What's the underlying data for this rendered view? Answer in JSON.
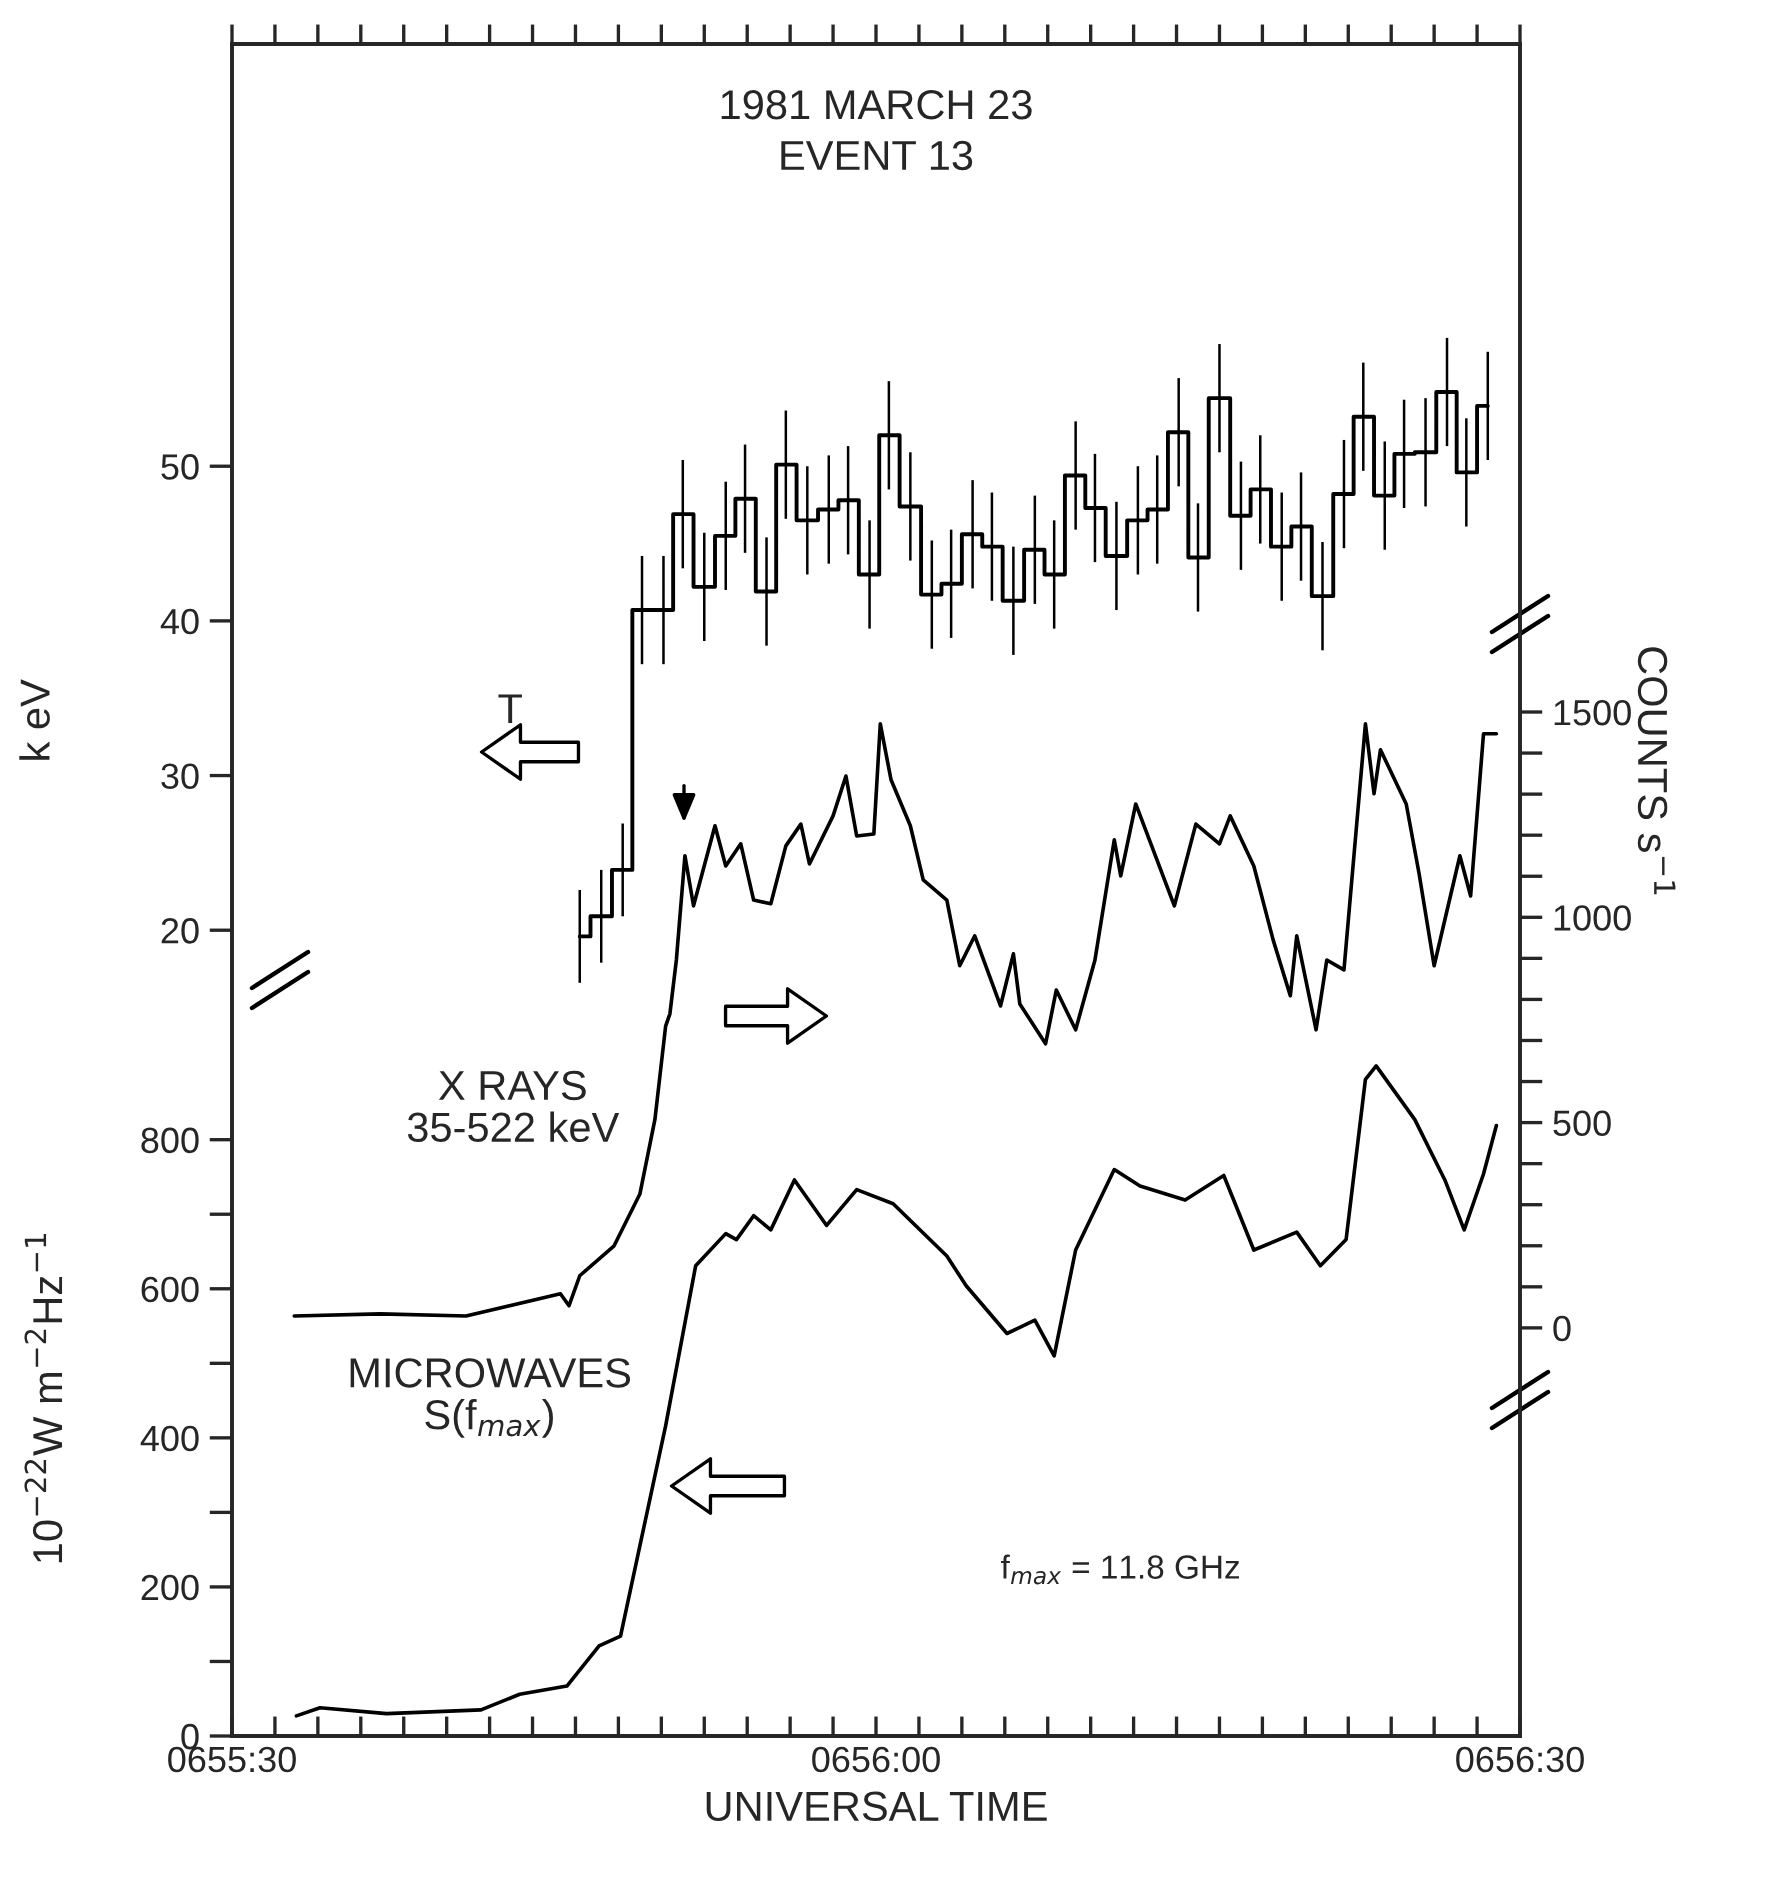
{
  "chart_data": {
    "type": "line",
    "title": "1981 MARCH 23",
    "subtitle": "EVENT 13",
    "xlabel": "UNIVERSAL TIME",
    "ylabel": "10$^{−22}$W m$^{−2}$Hz$^{−1}$",
    "y2label": "COUNTS s$^{−1}$",
    "y3label": "k eV",
    "annotations": [
      "f$_{max}$ = 11.8 GHz"
    ],
    "xlim": [
      "1981-03-23T06:55:30",
      "1981-03-23T06:56:30"
    ],
    "xticks": [
      {
        "value": "1981-03-23T06:55:30",
        "label": "0655:30"
      },
      {
        "value": "1981-03-23T06:55:32",
        "label": null
      },
      {
        "value": "1981-03-23T06:55:34",
        "label": null
      },
      {
        "value": "1981-03-23T06:55:36",
        "label": null
      },
      {
        "value": "1981-03-23T06:55:38",
        "label": null
      },
      {
        "value": "1981-03-23T06:55:40",
        "label": null
      },
      {
        "value": "1981-03-23T06:55:42",
        "label": null
      },
      {
        "value": "1981-03-23T06:55:44",
        "label": null
      },
      {
        "value": "1981-03-23T06:55:46",
        "label": null
      },
      {
        "value": "1981-03-23T06:55:48",
        "label": null
      },
      {
        "value": "1981-03-23T06:55:50",
        "label": null
      },
      {
        "value": "1981-03-23T06:55:52",
        "label": null
      },
      {
        "value": "1981-03-23T06:55:54",
        "label": null
      },
      {
        "value": "1981-03-23T06:55:56",
        "label": null
      },
      {
        "value": "1981-03-23T06:55:58",
        "label": null
      },
      {
        "value": "1981-03-23T06:56:00",
        "label": "0656:00"
      },
      {
        "value": "1981-03-23T06:56:02",
        "label": null
      },
      {
        "value": "1981-03-23T06:56:04",
        "label": null
      },
      {
        "value": "1981-03-23T06:56:06",
        "label": null
      },
      {
        "value": "1981-03-23T06:56:08",
        "label": null
      },
      {
        "value": "1981-03-23T06:56:10",
        "label": null
      },
      {
        "value": "1981-03-23T06:56:12",
        "label": null
      },
      {
        "value": "1981-03-23T06:56:14",
        "label": null
      },
      {
        "value": "1981-03-23T06:56:16",
        "label": null
      },
      {
        "value": "1981-03-23T06:56:18",
        "label": null
      },
      {
        "value": "1981-03-23T06:56:20",
        "label": null
      },
      {
        "value": "1981-03-23T06:56:22",
        "label": null
      },
      {
        "value": "1981-03-23T06:56:24",
        "label": null
      },
      {
        "value": "1981-03-23T06:56:26",
        "label": null
      },
      {
        "value": "1981-03-23T06:56:28",
        "label": null
      },
      {
        "value": "1981-03-23T06:56:30",
        "label": "0656:30"
      }
    ],
    "ylim": [
      0,
      2270
    ],
    "yticks": [
      0,
      {
        "value": 100,
        "label": null
      },
      200,
      {
        "value": 300,
        "label": null
      },
      400,
      {
        "value": 500,
        "label": null
      },
      600,
      {
        "value": 700,
        "label": null
      },
      800
    ],
    "y2lim": [
      -994,
      3127
    ],
    "y2ticks": [
      0,
      {
        "value": 100,
        "label": null
      },
      {
        "value": 200,
        "label": null
      },
      {
        "value": 300,
        "label": null
      },
      {
        "value": 400,
        "label": null
      },
      500,
      {
        "value": 600,
        "label": null
      },
      {
        "value": 700,
        "label": null
      },
      {
        "value": 800,
        "label": null
      },
      {
        "value": 900,
        "label": null
      },
      1000,
      {
        "value": 1100,
        "label": null
      },
      {
        "value": 1200,
        "label": null
      },
      {
        "value": 1300,
        "label": null
      },
      {
        "value": 1400,
        "label": null
      },
      1500
    ],
    "y3lim": [
      -32.1,
      77.3
    ],
    "y3ticks": [
      20,
      30,
      40,
      50
    ],
    "series": [
      {
        "name": "T",
        "type": "step",
        "axis": "y3",
        "color": "#000000",
        "x": [
          "1981-03-23T06:55:46.2",
          "1981-03-23T06:55:47.2",
          "1981-03-23T06:55:48.2",
          "1981-03-23T06:55:49.1",
          "1981-03-23T06:55:50.1",
          "1981-03-23T06:55:51.0",
          "1981-03-23T06:55:52.0",
          "1981-03-23T06:55:53.0",
          "1981-03-23T06:55:53.9",
          "1981-03-23T06:55:54.9",
          "1981-03-23T06:55:55.8",
          "1981-03-23T06:55:56.8",
          "1981-03-23T06:55:57.8",
          "1981-03-23T06:55:58.7",
          "1981-03-23T06:55:59.7",
          "1981-03-23T06:56:00.6",
          "1981-03-23T06:56:01.6",
          "1981-03-23T06:56:02.6",
          "1981-03-23T06:56:03.5",
          "1981-03-23T06:56:04.5",
          "1981-03-23T06:56:05.4",
          "1981-03-23T06:56:06.4",
          "1981-03-23T06:56:07.4",
          "1981-03-23T06:56:08.3",
          "1981-03-23T06:56:09.3",
          "1981-03-23T06:56:10.2",
          "1981-03-23T06:56:11.2",
          "1981-03-23T06:56:12.2",
          "1981-03-23T06:56:13.1",
          "1981-03-23T06:56:14.1",
          "1981-03-23T06:56:15.0",
          "1981-03-23T06:56:16.0",
          "1981-03-23T06:56:17.0",
          "1981-03-23T06:56:17.9",
          "1981-03-23T06:56:18.9",
          "1981-03-23T06:56:19.8",
          "1981-03-23T06:56:20.8",
          "1981-03-23T06:56:21.8",
          "1981-03-23T06:56:22.7",
          "1981-03-23T06:56:23.7",
          "1981-03-23T06:56:24.6",
          "1981-03-23T06:56:25.6",
          "1981-03-23T06:56:26.6",
          "1981-03-23T06:56:27.5",
          "1981-03-23T06:56:28.5"
        ],
        "values": [
          19.6,
          20.9,
          23.9,
          40.7,
          40.7,
          46.9,
          42.2,
          45.5,
          47.9,
          41.9,
          50.1,
          46.5,
          47.2,
          47.8,
          43.0,
          52.0,
          47.4,
          41.7,
          42.4,
          45.6,
          44.8,
          41.3,
          44.6,
          43.0,
          49.4,
          47.3,
          44.2,
          46.5,
          47.2,
          52.2,
          44.1,
          54.4,
          46.8,
          48.5,
          44.8,
          46.1,
          41.6,
          48.2,
          53.2,
          48.1,
          50.8,
          50.9,
          54.8,
          49.6,
          53.9
        ],
        "errors": [
          3,
          3,
          3,
          3.5,
          3.5,
          3.5,
          3.5,
          3.5,
          3.5,
          3.5,
          3.5,
          3.5,
          3.5,
          3.5,
          3.5,
          3.5,
          3.5,
          3.5,
          3.5,
          3.5,
          3.5,
          3.5,
          3.5,
          3.5,
          3.5,
          3.5,
          3.5,
          3.5,
          3.5,
          3.5,
          3.5,
          3.5,
          3.5,
          3.5,
          3.5,
          3.5,
          3.5,
          3.5,
          3.5,
          3.5,
          3.5,
          3.5,
          3.5,
          3.5,
          3.5
        ]
      },
      {
        "name": "X RAYS\n35-522 keV",
        "axis": "y2",
        "color": "#000000",
        "x": [
          "1981-03-23T06:55:32.9",
          "1981-03-23T06:55:36.9",
          "1981-03-23T06:55:40.9",
          "1981-03-23T06:55:45.3",
          "1981-03-23T06:55:45.7",
          "1981-03-23T06:55:46.2",
          "1981-03-23T06:55:47.8",
          "1981-03-23T06:55:49.0",
          "1981-03-23T06:55:49.7",
          "1981-03-23T06:55:50.2",
          "1981-03-23T06:55:50.4",
          "1981-03-23T06:55:50.7",
          "1981-03-23T06:55:51.1",
          "1981-03-23T06:55:51.5",
          "1981-03-23T06:55:52.5",
          "1981-03-23T06:55:53.0",
          "1981-03-23T06:55:53.7",
          "1981-03-23T06:55:54.3",
          "1981-03-23T06:55:55.1",
          "1981-03-23T06:55:55.8",
          "1981-03-23T06:55:56.5",
          "1981-03-23T06:55:56.9",
          "1981-03-23T06:55:58.0",
          "1981-03-23T06:55:58.6",
          "1981-03-23T06:55:59.1",
          "1981-03-23T06:55:59.9",
          "1981-03-23T06:56:00.2",
          "1981-03-23T06:56:00.7",
          "1981-03-23T06:56:01.6",
          "1981-03-23T06:56:02.2",
          "1981-03-23T06:56:03.3",
          "1981-03-23T06:56:03.9",
          "1981-03-23T06:56:04.6",
          "1981-03-23T06:56:05.8",
          "1981-03-23T06:56:06.4",
          "1981-03-23T06:56:06.7",
          "1981-03-23T06:56:07.9",
          "1981-03-23T06:56:08.4",
          "1981-03-23T06:56:09.3",
          "1981-03-23T06:56:10.2",
          "1981-03-23T06:56:11.1",
          "1981-03-23T06:56:11.4",
          "1981-03-23T06:56:12.1",
          "1981-03-23T06:56:13.9",
          "1981-03-23T06:56:14.9",
          "1981-03-23T06:56:16.0",
          "1981-03-23T06:56:16.5",
          "1981-03-23T06:56:17.6",
          "1981-03-23T06:56:18.5",
          "1981-03-23T06:56:19.3",
          "1981-03-23T06:56:19.6",
          "1981-03-23T06:56:20.5",
          "1981-03-23T06:56:21.0",
          "1981-03-23T06:56:21.8",
          "1981-03-23T06:56:22.8",
          "1981-03-23T06:56:23.2",
          "1981-03-23T06:56:23.5",
          "1981-03-23T06:56:24.7",
          "1981-03-23T06:56:25.3",
          "1981-03-23T06:56:26.0",
          "1981-03-23T06:56:26.5",
          "1981-03-23T06:56:27.2",
          "1981-03-23T06:56:27.7",
          "1981-03-23T06:56:28.3",
          "1981-03-23T06:56:28.9"
        ],
        "values": [
          29,
          34,
          29,
          83,
          54,
          127,
          200,
          326,
          507,
          735,
          765,
          896,
          1150,
          1028,
          1223,
          1125,
          1179,
          1042,
          1033,
          1174,
          1227,
          1130,
          1247,
          1344,
          1198,
          1203,
          1471,
          1335,
          1223,
          1091,
          1042,
          882,
          955,
          784,
          911,
          789,
          692,
          823,
          726,
          896,
          1189,
          1101,
          1276,
          1028,
          1227,
          1179,
          1247,
          1125,
          945,
          809,
          955,
          726,
          896,
          872,
          1471,
          1301,
          1408,
          1276,
          1106,
          882,
          994,
          1150,
          1052,
          1447,
          1447
        ]
      },
      {
        "name": "MICROWAVES\nS(f$_{max}$)",
        "axis": "y",
        "color": "#000000",
        "x": [
          "1981-03-23T06:55:33.0",
          "1981-03-23T06:55:34.1",
          "1981-03-23T06:55:37.2",
          "1981-03-23T06:55:41.6",
          "1981-03-23T06:55:43.4",
          "1981-03-23T06:55:45.6",
          "1981-03-23T06:55:47.1",
          "1981-03-23T06:55:48.1",
          "1981-03-23T06:55:49.0",
          "1981-03-23T06:55:50.2",
          "1981-03-23T06:55:51.6",
          "1981-03-23T06:55:53.0",
          "1981-03-23T06:55:53.5",
          "1981-03-23T06:55:54.3",
          "1981-03-23T06:55:55.1",
          "1981-03-23T06:55:56.2",
          "1981-03-23T06:55:57.7",
          "1981-03-23T06:55:59.1",
          "1981-03-23T06:56:00.8",
          "1981-03-23T06:56:03.3",
          "1981-03-23T06:56:04.2",
          "1981-03-23T06:56:06.1",
          "1981-03-23T06:56:07.4",
          "1981-03-23T06:56:08.3",
          "1981-03-23T06:56:09.3",
          "1981-03-23T06:56:11.1",
          "1981-03-23T06:56:12.3",
          "1981-03-23T06:56:14.4",
          "1981-03-23T06:56:16.2",
          "1981-03-23T06:56:17.6",
          "1981-03-23T06:56:19.6",
          "1981-03-23T06:56:20.7",
          "1981-03-23T06:56:21.9",
          "1981-03-23T06:56:22.8",
          "1981-03-23T06:56:23.3",
          "1981-03-23T06:56:25.1",
          "1981-03-23T06:56:26.5",
          "1981-03-23T06:56:27.4",
          "1981-03-23T06:56:28.3",
          "1981-03-23T06:56:28.9"
        ],
        "values": [
          27,
          38,
          30,
          35,
          56,
          67,
          121,
          134,
          255,
          416,
          631,
          674,
          666,
          698,
          679,
          746,
          685,
          733,
          714,
          644,
          604,
          540,
          558,
          510,
          652,
          760,
          738,
          719,
          752,
          652,
          676,
          631,
          666,
          881,
          899,
          827,
          746,
          679,
          754,
          819
        ]
      }
    ]
  }
}
